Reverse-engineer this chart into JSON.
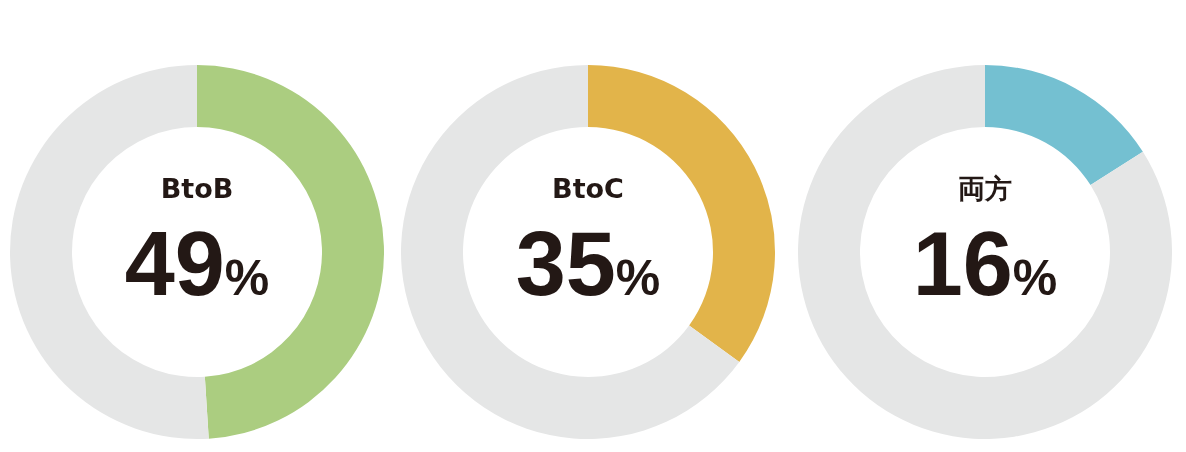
{
  "chart_data": [
    {
      "type": "donut",
      "categories": [
        "BtoB",
        null
      ],
      "values": [
        49,
        51
      ],
      "colors": [
        "#abcd80",
        "#e5e6e6"
      ],
      "value_labels": [
        "49%",
        null
      ]
    },
    {
      "type": "donut",
      "categories": [
        "BtoC",
        null
      ],
      "values": [
        35,
        65
      ],
      "colors": [
        "#e2b44a",
        "#e5e6e6"
      ],
      "value_labels": [
        "35%",
        null
      ]
    },
    {
      "type": "donut",
      "categories": [
        "両方",
        null
      ],
      "values": [
        16,
        84
      ],
      "colors": [
        "#74c0d1",
        "#e5e6e6"
      ],
      "value_labels": [
        "16%",
        null
      ]
    }
  ]
}
